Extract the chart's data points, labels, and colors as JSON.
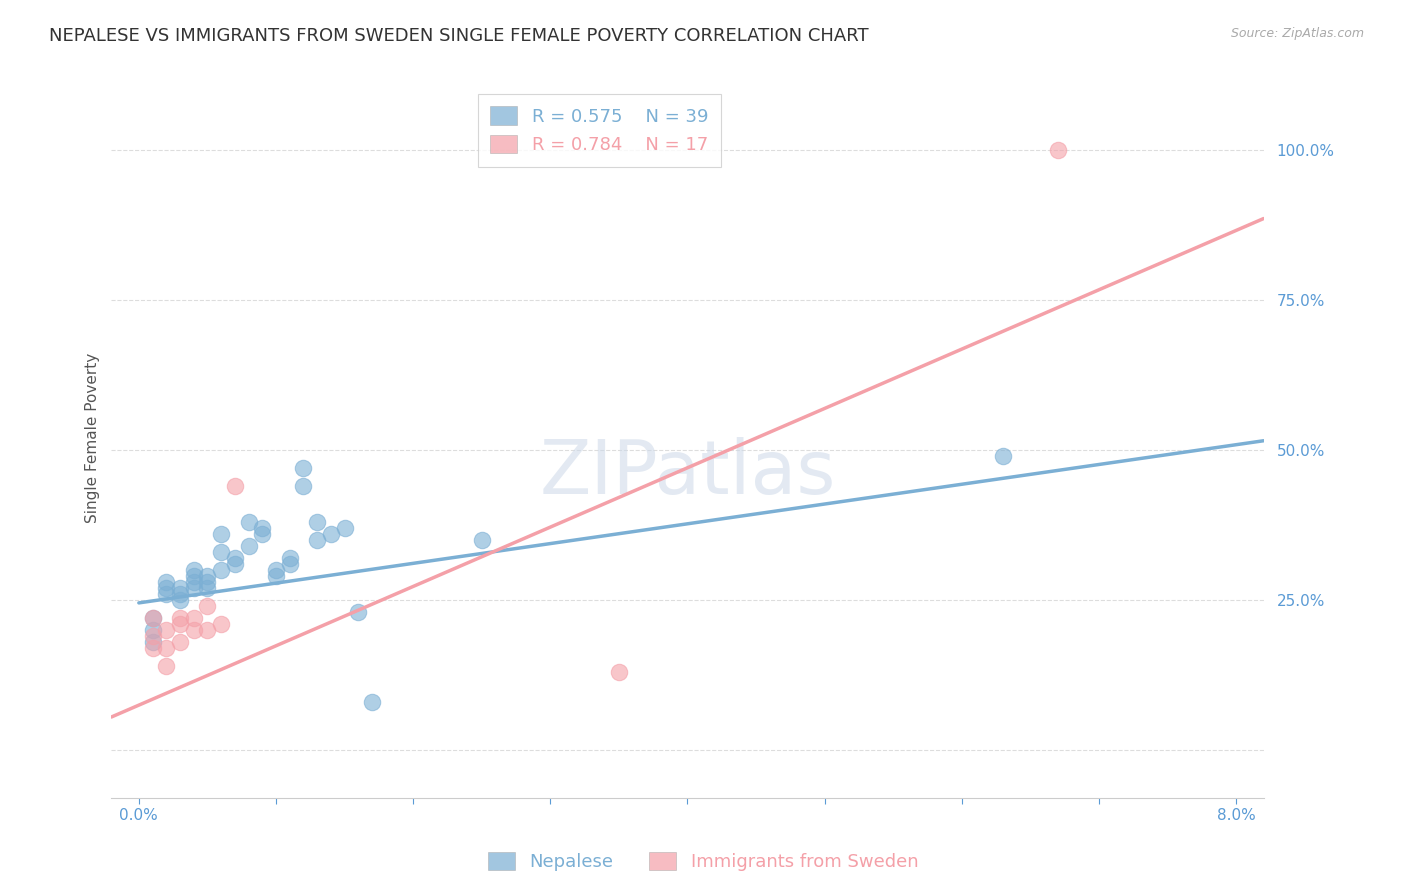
{
  "title": "NEPALESE VS IMMIGRANTS FROM SWEDEN SINGLE FEMALE POVERTY CORRELATION CHART",
  "source": "Source: ZipAtlas.com",
  "ylabel_label": "Single Female Poverty",
  "xlim": [
    -0.002,
    0.082
  ],
  "ylim": [
    -0.08,
    1.12
  ],
  "xticks": [
    0.0,
    0.01,
    0.02,
    0.03,
    0.04,
    0.05,
    0.06,
    0.07,
    0.08
  ],
  "xtick_labels": [
    "0.0%",
    "",
    "",
    "",
    "",
    "",
    "",
    "",
    "8.0%"
  ],
  "yticks": [
    0.0,
    0.25,
    0.5,
    0.75,
    1.0
  ],
  "ytick_labels": [
    "",
    "25.0%",
    "50.0%",
    "75.0%",
    "100.0%"
  ],
  "blue_color": "#7BAFD4",
  "pink_color": "#F4A0A8",
  "blue_R": "0.575",
  "blue_N": "39",
  "pink_R": "0.784",
  "pink_N": "17",
  "watermark": "ZIPatlas",
  "nepalese_points": [
    [
      0.001,
      0.22
    ],
    [
      0.001,
      0.18
    ],
    [
      0.001,
      0.2
    ],
    [
      0.002,
      0.26
    ],
    [
      0.002,
      0.27
    ],
    [
      0.002,
      0.28
    ],
    [
      0.003,
      0.26
    ],
    [
      0.003,
      0.27
    ],
    [
      0.003,
      0.25
    ],
    [
      0.004,
      0.27
    ],
    [
      0.004,
      0.28
    ],
    [
      0.004,
      0.29
    ],
    [
      0.004,
      0.3
    ],
    [
      0.005,
      0.27
    ],
    [
      0.005,
      0.29
    ],
    [
      0.005,
      0.28
    ],
    [
      0.006,
      0.3
    ],
    [
      0.006,
      0.33
    ],
    [
      0.006,
      0.36
    ],
    [
      0.007,
      0.32
    ],
    [
      0.007,
      0.31
    ],
    [
      0.008,
      0.34
    ],
    [
      0.008,
      0.38
    ],
    [
      0.009,
      0.36
    ],
    [
      0.009,
      0.37
    ],
    [
      0.01,
      0.29
    ],
    [
      0.01,
      0.3
    ],
    [
      0.011,
      0.31
    ],
    [
      0.011,
      0.32
    ],
    [
      0.012,
      0.44
    ],
    [
      0.012,
      0.47
    ],
    [
      0.013,
      0.38
    ],
    [
      0.013,
      0.35
    ],
    [
      0.014,
      0.36
    ],
    [
      0.015,
      0.37
    ],
    [
      0.016,
      0.23
    ],
    [
      0.017,
      0.08
    ],
    [
      0.025,
      0.35
    ],
    [
      0.063,
      0.49
    ]
  ],
  "sweden_points": [
    [
      0.001,
      0.22
    ],
    [
      0.001,
      0.19
    ],
    [
      0.001,
      0.17
    ],
    [
      0.002,
      0.2
    ],
    [
      0.002,
      0.17
    ],
    [
      0.002,
      0.14
    ],
    [
      0.003,
      0.22
    ],
    [
      0.003,
      0.21
    ],
    [
      0.003,
      0.18
    ],
    [
      0.004,
      0.2
    ],
    [
      0.004,
      0.22
    ],
    [
      0.005,
      0.24
    ],
    [
      0.005,
      0.2
    ],
    [
      0.006,
      0.21
    ],
    [
      0.007,
      0.44
    ],
    [
      0.035,
      0.13
    ],
    [
      0.067,
      1.0
    ]
  ],
  "blue_line": [
    [
      0.0,
      0.245
    ],
    [
      0.082,
      0.515
    ]
  ],
  "pink_line": [
    [
      -0.002,
      0.055
    ],
    [
      0.082,
      0.885
    ]
  ],
  "background_color": "#ffffff",
  "grid_color": "#dddddd",
  "title_fontsize": 13,
  "axis_label_fontsize": 11,
  "tick_label_color": "#5B9BD5",
  "tick_label_fontsize": 11,
  "legend_fontsize": 13
}
